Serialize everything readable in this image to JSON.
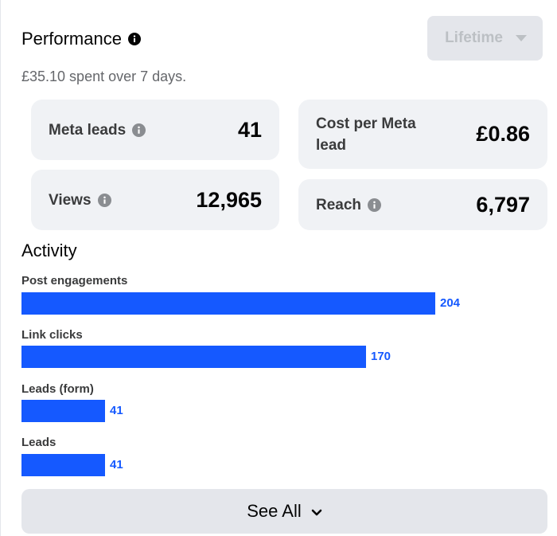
{
  "header": {
    "title": "Performance",
    "subtitle": "£35.10 spent over 7 days."
  },
  "dropdown": {
    "selected": "Lifetime"
  },
  "metrics": [
    {
      "label": "Meta leads",
      "value": "41",
      "has_info_icon": true
    },
    {
      "label": "Cost per Meta lead",
      "value": "£0.86",
      "has_info_icon": false
    },
    {
      "label": "Views",
      "value": "12,965",
      "has_info_icon": true
    },
    {
      "label": "Reach",
      "value": "6,797",
      "has_info_icon": true
    }
  ],
  "activity": {
    "title": "Activity",
    "items": [
      {
        "label": "Post engagements",
        "value": 204
      },
      {
        "label": "Link clicks",
        "value": 170
      },
      {
        "label": "Leads (form)",
        "value": 41
      },
      {
        "label": "Leads",
        "value": 41
      }
    ],
    "bar_color": "#1559ff"
  },
  "footer": {
    "see_all_label": "See All"
  },
  "icons": {
    "title_info": "info-icon",
    "metric_info": "info-icon",
    "dropdown": "caret-down-icon",
    "see_all": "chevron-down-icon"
  }
}
